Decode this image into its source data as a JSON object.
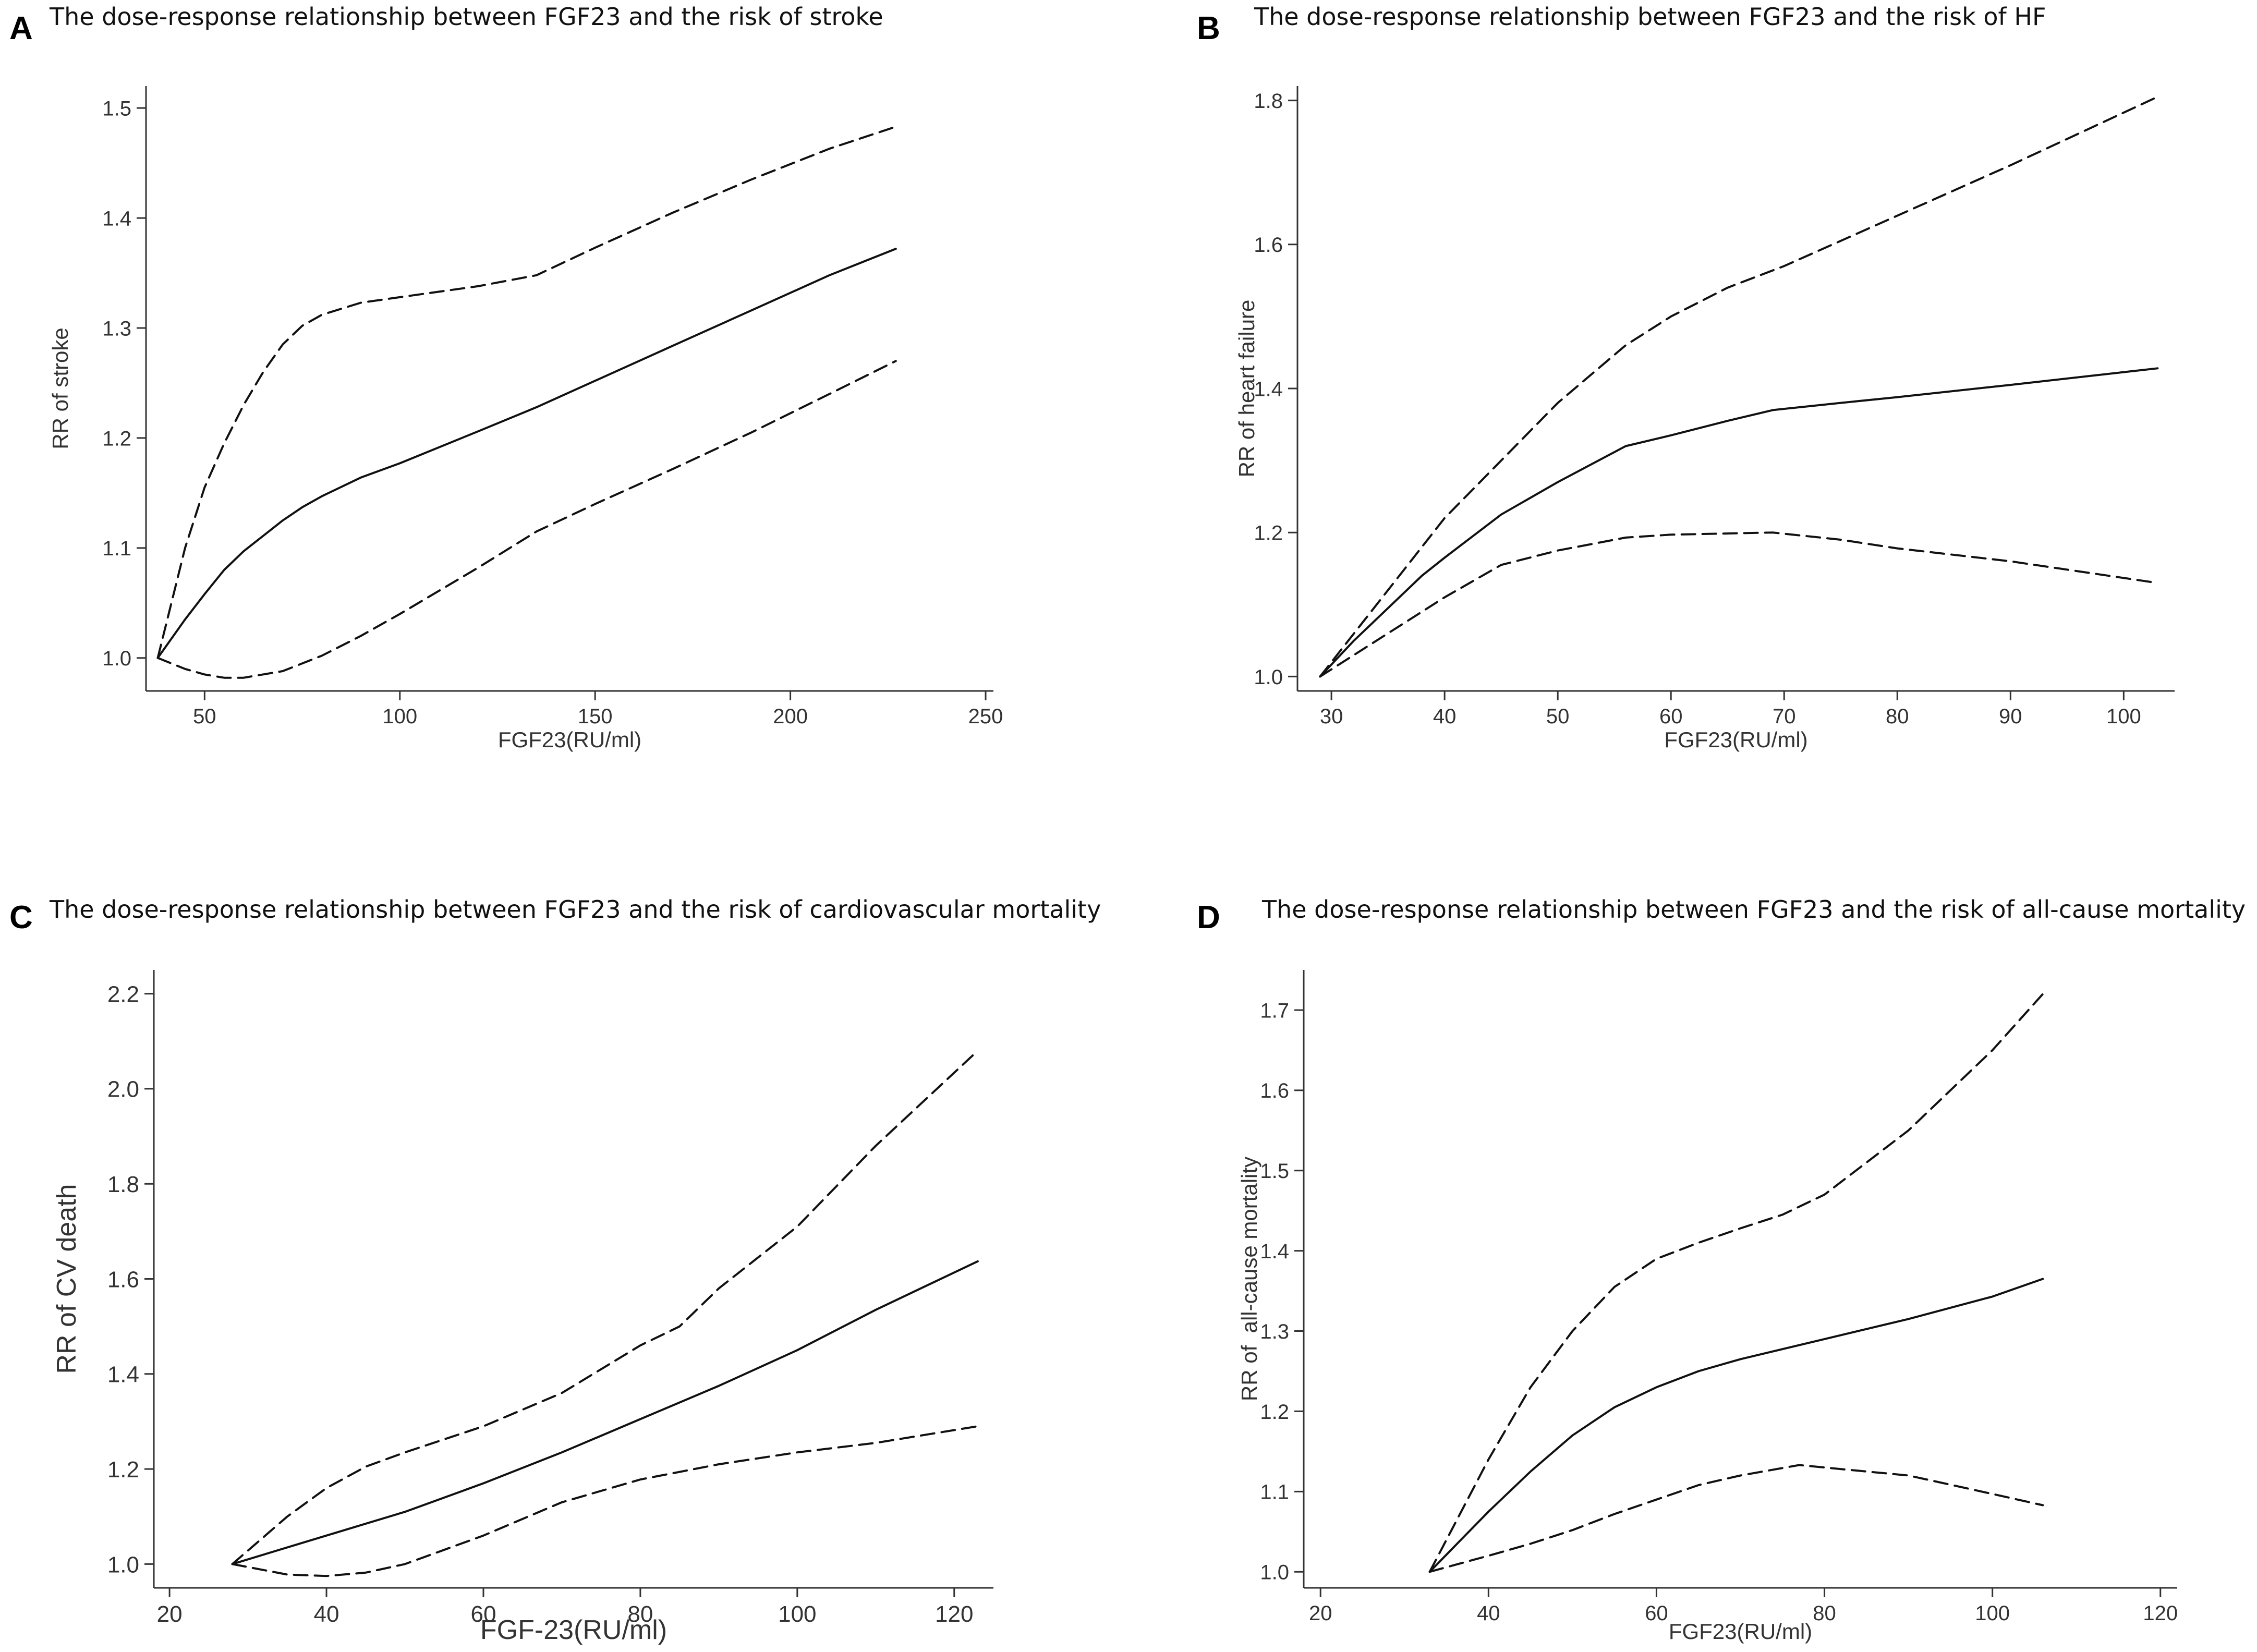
{
  "figure": {
    "panels": [
      "A",
      "B",
      "C",
      "D"
    ]
  },
  "chart_data": [
    {
      "type": "line",
      "panel": "A",
      "title": "The dose-response relationship between FGF23 and the risk of stroke",
      "xlabel": "FGF23(RU/ml)",
      "ylabel": "RR of stroke",
      "xlim": [
        35,
        252
      ],
      "ylim": [
        0.97,
        1.52
      ],
      "xticks": [
        50,
        100,
        150,
        200,
        250
      ],
      "yticks": [
        1.0,
        1.1,
        1.2,
        1.3,
        1.4,
        1.5
      ],
      "grid": false,
      "series": [
        {
          "name": "RR",
          "style": "solid",
          "x": [
            38,
            45,
            50,
            55,
            60,
            65,
            70,
            75,
            80,
            90,
            100,
            120,
            135,
            150,
            170,
            190,
            210,
            227
          ],
          "y": [
            1.0,
            1.035,
            1.058,
            1.08,
            1.097,
            1.111,
            1.125,
            1.137,
            1.147,
            1.164,
            1.177,
            1.206,
            1.228,
            1.252,
            1.284,
            1.316,
            1.348,
            1.372
          ]
        },
        {
          "name": "Upper 95% CI",
          "style": "dashed",
          "x": [
            38,
            45,
            50,
            55,
            60,
            65,
            70,
            75,
            80,
            90,
            100,
            120,
            135,
            150,
            170,
            190,
            210,
            227
          ],
          "y": [
            1.0,
            1.1,
            1.155,
            1.195,
            1.23,
            1.26,
            1.285,
            1.302,
            1.312,
            1.323,
            1.328,
            1.338,
            1.348,
            1.373,
            1.405,
            1.435,
            1.463,
            1.483
          ]
        },
        {
          "name": "Lower 95% CI",
          "style": "dashed",
          "x": [
            38,
            45,
            50,
            55,
            60,
            70,
            80,
            90,
            100,
            120,
            135,
            150,
            170,
            190,
            210,
            227
          ],
          "y": [
            1.0,
            0.99,
            0.985,
            0.982,
            0.982,
            0.988,
            1.002,
            1.02,
            1.04,
            1.082,
            1.115,
            1.14,
            1.172,
            1.205,
            1.24,
            1.27
          ]
        }
      ]
    },
    {
      "type": "line",
      "panel": "B",
      "title": "The dose-response relationship between FGF23 and the risk of HF",
      "xlabel": "FGF23(RU/ml)",
      "ylabel": "RR of heart failure",
      "xlim": [
        27,
        104.5
      ],
      "ylim": [
        0.98,
        1.82
      ],
      "xticks": [
        30,
        40,
        50,
        60,
        70,
        80,
        90,
        100
      ],
      "yticks": [
        1.0,
        1.2,
        1.4,
        1.6,
        1.8
      ],
      "grid": false,
      "series": [
        {
          "name": "RR",
          "style": "solid",
          "x": [
            29,
            32,
            35,
            38,
            40,
            45,
            50,
            56,
            60,
            65,
            69,
            75,
            80,
            90,
            103
          ],
          "y": [
            1.0,
            1.05,
            1.095,
            1.14,
            1.165,
            1.225,
            1.27,
            1.32,
            1.335,
            1.355,
            1.37,
            1.38,
            1.388,
            1.405,
            1.428
          ]
        },
        {
          "name": "Upper 95% CI",
          "style": "dashed",
          "x": [
            29,
            35,
            40,
            45,
            50,
            56,
            60,
            65,
            70,
            80,
            90,
            103
          ],
          "y": [
            1.0,
            1.12,
            1.22,
            1.3,
            1.38,
            1.46,
            1.5,
            1.54,
            1.57,
            1.64,
            1.71,
            1.805
          ]
        },
        {
          "name": "Lower 95% CI",
          "style": "dashed",
          "x": [
            29,
            35,
            40,
            45,
            50,
            56,
            60,
            69,
            75,
            80,
            90,
            103
          ],
          "y": [
            1.0,
            1.06,
            1.11,
            1.155,
            1.175,
            1.193,
            1.197,
            1.2,
            1.19,
            1.178,
            1.16,
            1.13
          ]
        }
      ]
    },
    {
      "type": "line",
      "panel": "C",
      "title": "The dose-response relationship between FGF23 and the risk of cardiovascular mortality",
      "xlabel": "FGF-23(RU/ml)",
      "ylabel": "RR of CV death",
      "xlim": [
        18,
        125
      ],
      "ylim": [
        0.95,
        2.25
      ],
      "xticks": [
        20,
        40,
        60,
        80,
        100,
        120
      ],
      "yticks": [
        1.0,
        1.2,
        1.4,
        1.6,
        1.8,
        2.0,
        2.2
      ],
      "grid": false,
      "series": [
        {
          "name": "RR",
          "style": "solid",
          "x": [
            28,
            40,
            50,
            60,
            70,
            80,
            90,
            100,
            110,
            123
          ],
          "y": [
            1.0,
            1.06,
            1.11,
            1.17,
            1.235,
            1.305,
            1.375,
            1.45,
            1.535,
            1.637
          ]
        },
        {
          "name": "Upper 95% CI",
          "style": "dashed",
          "x": [
            28,
            35,
            40,
            45,
            50,
            60,
            70,
            80,
            85,
            90,
            100,
            110,
            123
          ],
          "y": [
            1.0,
            1.1,
            1.16,
            1.205,
            1.235,
            1.29,
            1.36,
            1.46,
            1.5,
            1.58,
            1.71,
            1.88,
            2.08
          ]
        },
        {
          "name": "Lower 95% CI",
          "style": "dashed",
          "x": [
            28,
            35,
            40,
            45,
            50,
            60,
            70,
            80,
            90,
            100,
            110,
            123
          ],
          "y": [
            1.0,
            0.978,
            0.975,
            0.982,
            1.0,
            1.06,
            1.13,
            1.178,
            1.21,
            1.235,
            1.255,
            1.29
          ]
        }
      ]
    },
    {
      "type": "line",
      "panel": "D",
      "title": "The dose-response relationship between FGF23 and the risk of all-cause mortality",
      "xlabel": "FGF23(RU/ml)",
      "ylabel": "RR of  all-cause mortality",
      "xlim": [
        18,
        122
      ],
      "ylim": [
        0.98,
        1.75
      ],
      "xticks": [
        20,
        40,
        60,
        80,
        100,
        120
      ],
      "yticks": [
        1.0,
        1.1,
        1.2,
        1.3,
        1.4,
        1.5,
        1.6,
        1.7
      ],
      "grid": false,
      "series": [
        {
          "name": "RR",
          "style": "solid",
          "x": [
            33,
            40,
            45,
            50,
            55,
            60,
            65,
            70,
            80,
            90,
            100,
            106
          ],
          "y": [
            1.0,
            1.075,
            1.125,
            1.17,
            1.205,
            1.23,
            1.25,
            1.265,
            1.29,
            1.315,
            1.343,
            1.365
          ]
        },
        {
          "name": "Upper 95% CI",
          "style": "dashed",
          "x": [
            33,
            40,
            45,
            50,
            55,
            60,
            65,
            70,
            75,
            80,
            90,
            100,
            106
          ],
          "y": [
            1.0,
            1.14,
            1.23,
            1.3,
            1.355,
            1.39,
            1.41,
            1.428,
            1.445,
            1.47,
            1.55,
            1.65,
            1.72
          ]
        },
        {
          "name": "Lower 95% CI",
          "style": "dashed",
          "x": [
            33,
            40,
            45,
            50,
            55,
            60,
            65,
            70,
            77,
            80,
            90,
            100,
            106
          ],
          "y": [
            1.0,
            1.02,
            1.035,
            1.052,
            1.072,
            1.09,
            1.108,
            1.12,
            1.133,
            1.13,
            1.12,
            1.097,
            1.083
          ]
        }
      ]
    }
  ]
}
